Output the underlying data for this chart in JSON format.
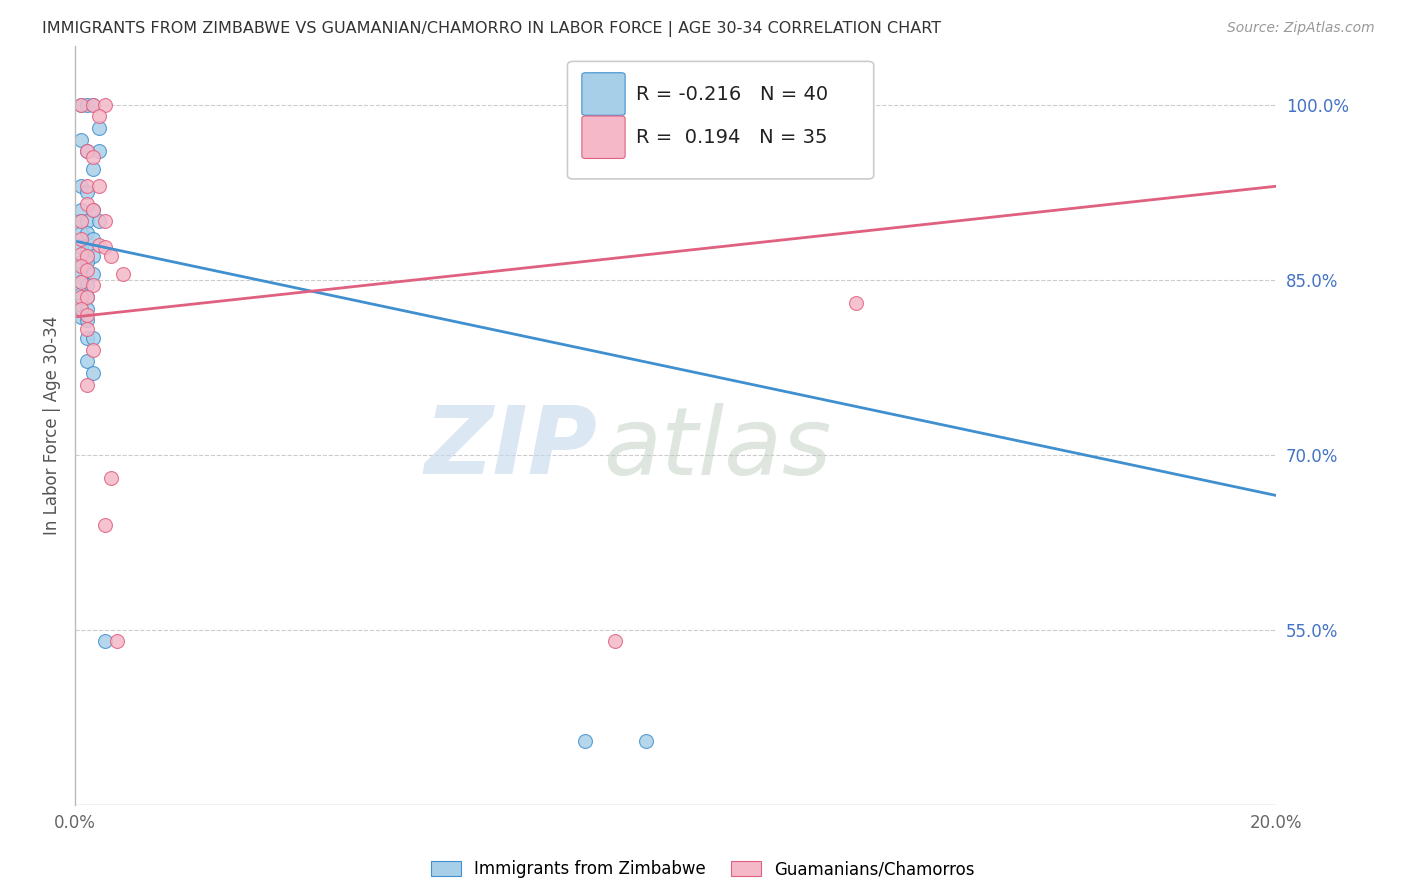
{
  "title": "IMMIGRANTS FROM ZIMBABWE VS GUAMANIAN/CHAMORRO IN LABOR FORCE | AGE 30-34 CORRELATION CHART",
  "source": "Source: ZipAtlas.com",
  "ylabel": "In Labor Force | Age 30-34",
  "xlim": [
    0.0,
    0.2
  ],
  "ylim": [
    0.4,
    1.05
  ],
  "xtick_vals": [
    0.0,
    0.05,
    0.1,
    0.15,
    0.2
  ],
  "xtick_labels": [
    "0.0%",
    "",
    "",
    "",
    "20.0%"
  ],
  "ytick_vals": [
    1.0,
    0.85,
    0.7,
    0.55
  ],
  "ytick_labels": [
    "100.0%",
    "85.0%",
    "70.0%",
    "55.0%"
  ],
  "blue_R": -0.216,
  "blue_N": 40,
  "pink_R": 0.194,
  "pink_N": 35,
  "legend_label_blue": "Immigrants from Zimbabwe",
  "legend_label_pink": "Guamanians/Chamorros",
  "blue_color": "#a8cfe8",
  "pink_color": "#f4b8c8",
  "blue_line_color": "#4090d0",
  "pink_line_color": "#e06080",
  "blue_line_x0": 0.0,
  "blue_line_y0": 0.883,
  "blue_line_x1": 0.2,
  "blue_line_y1": 0.665,
  "pink_line_x0": 0.0,
  "pink_line_y0": 0.818,
  "pink_line_x1": 0.2,
  "pink_line_y1": 0.93,
  "blue_scatter": [
    [
      0.001,
      1.0
    ],
    [
      0.002,
      1.0
    ],
    [
      0.003,
      1.0
    ],
    [
      0.004,
      0.98
    ],
    [
      0.004,
      0.96
    ],
    [
      0.001,
      0.97
    ],
    [
      0.002,
      0.96
    ],
    [
      0.003,
      0.945
    ],
    [
      0.001,
      0.93
    ],
    [
      0.002,
      0.925
    ],
    [
      0.001,
      0.91
    ],
    [
      0.003,
      0.91
    ],
    [
      0.001,
      0.9
    ],
    [
      0.002,
      0.9
    ],
    [
      0.004,
      0.9
    ],
    [
      0.001,
      0.89
    ],
    [
      0.002,
      0.89
    ],
    [
      0.003,
      0.885
    ],
    [
      0.001,
      0.878
    ],
    [
      0.002,
      0.875
    ],
    [
      0.003,
      0.87
    ],
    [
      0.001,
      0.865
    ],
    [
      0.002,
      0.865
    ],
    [
      0.001,
      0.855
    ],
    [
      0.003,
      0.855
    ],
    [
      0.001,
      0.848
    ],
    [
      0.002,
      0.845
    ],
    [
      0.001,
      0.838
    ],
    [
      0.002,
      0.835
    ],
    [
      0.001,
      0.828
    ],
    [
      0.002,
      0.825
    ],
    [
      0.001,
      0.818
    ],
    [
      0.002,
      0.815
    ],
    [
      0.002,
      0.8
    ],
    [
      0.003,
      0.8
    ],
    [
      0.002,
      0.78
    ],
    [
      0.003,
      0.77
    ],
    [
      0.005,
      0.54
    ],
    [
      0.085,
      0.455
    ],
    [
      0.095,
      0.455
    ]
  ],
  "pink_scatter": [
    [
      0.001,
      1.0
    ],
    [
      0.003,
      1.0
    ],
    [
      0.005,
      1.0
    ],
    [
      0.004,
      0.99
    ],
    [
      0.002,
      0.96
    ],
    [
      0.003,
      0.955
    ],
    [
      0.002,
      0.93
    ],
    [
      0.004,
      0.93
    ],
    [
      0.002,
      0.915
    ],
    [
      0.003,
      0.91
    ],
    [
      0.001,
      0.9
    ],
    [
      0.005,
      0.9
    ],
    [
      0.001,
      0.885
    ],
    [
      0.004,
      0.88
    ],
    [
      0.005,
      0.878
    ],
    [
      0.001,
      0.872
    ],
    [
      0.002,
      0.87
    ],
    [
      0.006,
      0.87
    ],
    [
      0.001,
      0.862
    ],
    [
      0.002,
      0.858
    ],
    [
      0.008,
      0.855
    ],
    [
      0.001,
      0.848
    ],
    [
      0.003,
      0.845
    ],
    [
      0.001,
      0.835
    ],
    [
      0.002,
      0.835
    ],
    [
      0.001,
      0.825
    ],
    [
      0.002,
      0.82
    ],
    [
      0.002,
      0.808
    ],
    [
      0.003,
      0.79
    ],
    [
      0.002,
      0.76
    ],
    [
      0.006,
      0.68
    ],
    [
      0.005,
      0.64
    ],
    [
      0.007,
      0.54
    ],
    [
      0.09,
      0.54
    ],
    [
      0.13,
      0.83
    ]
  ],
  "watermark_zip": "ZIP",
  "watermark_atlas": "atlas",
  "background_color": "#ffffff",
  "grid_color": "#cccccc"
}
